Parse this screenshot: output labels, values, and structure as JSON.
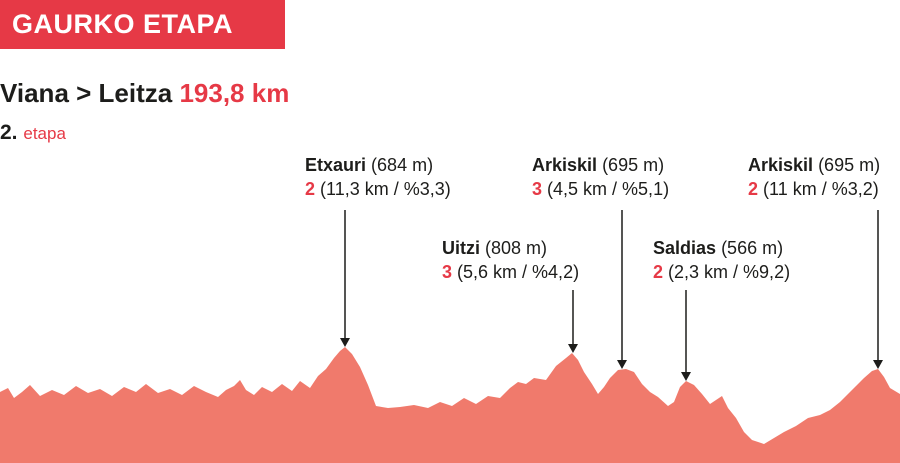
{
  "banner": {
    "title": "GAURKO ETAPA"
  },
  "route": {
    "from_to": "Viana > Leitza",
    "distance": "193,8 km"
  },
  "stage": {
    "number": "2.",
    "word": "etapa"
  },
  "colors": {
    "accent": "#e63946",
    "profile_fill": "#f07a6c",
    "text": "#1d1d1b"
  },
  "climbs": [
    {
      "name": "Etxauri",
      "altitude": "(684 m)",
      "category": "2",
      "details": "(11,3 km / %3,3)"
    },
    {
      "name": "Uitzi",
      "altitude": "(808 m)",
      "category": "3",
      "details": "(5,6 km / %4,2)"
    },
    {
      "name": "Arkiskil",
      "altitude": "(695 m)",
      "category": "3",
      "details": "(4,5 km / %5,1)"
    },
    {
      "name": "Saldias",
      "altitude": "(566 m)",
      "category": "2",
      "details": "(2,3 km / %9,2)"
    },
    {
      "name": "Arkiskil",
      "altitude": "(695 m)",
      "category": "2",
      "details": "(11 km / %3,2)"
    }
  ]
}
